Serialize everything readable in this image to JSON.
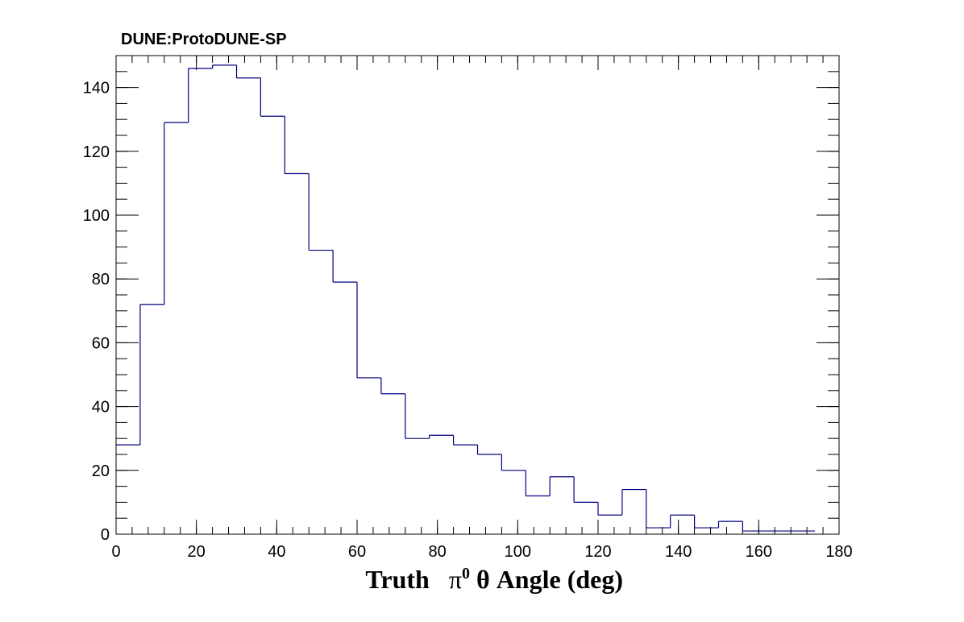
{
  "chart_data": {
    "type": "histogram",
    "title": "DUNE:ProtoDUNE-SP",
    "xlabel": {
      "prefix": "Truth ",
      "symbol": "π",
      "superscript": "0",
      "suffix": " θ Angle (deg)"
    },
    "ylabel": "",
    "xlim": [
      0,
      180
    ],
    "ylim": [
      0,
      150
    ],
    "bin_width": 6,
    "x_ticks": [
      0,
      20,
      40,
      60,
      80,
      100,
      120,
      140,
      160,
      180
    ],
    "y_ticks": [
      0,
      20,
      40,
      60,
      80,
      100,
      120,
      140
    ],
    "x_minor_step": 4,
    "y_minor_step": 5,
    "line_color": "#00007f",
    "series": [
      {
        "bin_low_edges": [
          0,
          6,
          12,
          18,
          24,
          30,
          36,
          42,
          48,
          54,
          60,
          66,
          72,
          78,
          84,
          90,
          96,
          102,
          108,
          114,
          120,
          126,
          132,
          138,
          144,
          150,
          156,
          162,
          168
        ],
        "values": [
          28,
          72,
          129,
          146,
          147,
          143,
          131,
          113,
          89,
          79,
          49,
          44,
          30,
          31,
          28,
          25,
          20,
          12,
          18,
          10,
          6,
          14,
          2,
          6,
          2,
          4,
          1,
          1,
          1
        ]
      }
    ]
  }
}
